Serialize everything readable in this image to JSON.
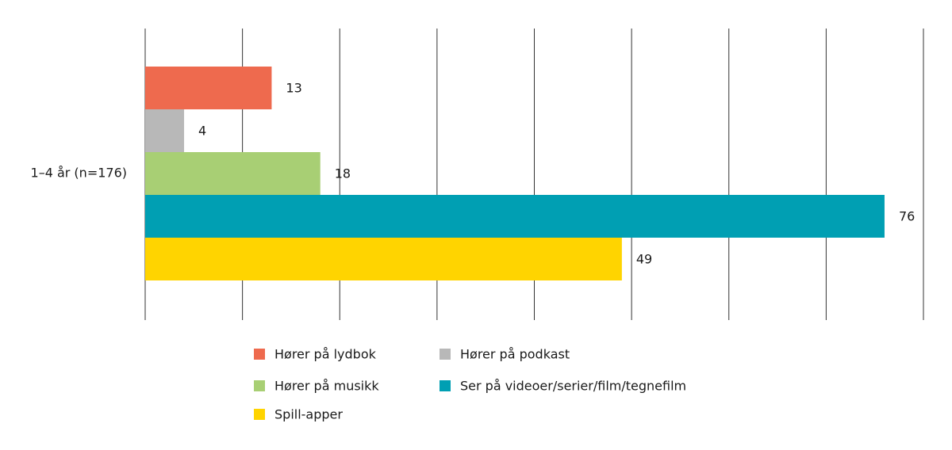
{
  "chart_data": {
    "type": "hbar",
    "categories": [
      "1–4 år (n=176)"
    ],
    "series": [
      {
        "name": "Hører på lydbok",
        "color": "#ee6a4e",
        "values": [
          13
        ]
      },
      {
        "name": "Hører på podkast",
        "color": "#b8b8b8",
        "values": [
          4
        ]
      },
      {
        "name": "Hører på musikk",
        "color": "#a8cf74",
        "values": [
          18
        ]
      },
      {
        "name": "Ser på videoer/serier/film/tegnefilm",
        "color": "#009fb3",
        "values": [
          76
        ]
      },
      {
        "name": "Spill-apper",
        "color": "#ffd400",
        "values": [
          49
        ]
      }
    ],
    "xlim": [
      0,
      80
    ],
    "xticks": [
      0,
      10,
      20,
      30,
      40,
      50,
      60,
      70,
      80
    ],
    "grid": true
  }
}
